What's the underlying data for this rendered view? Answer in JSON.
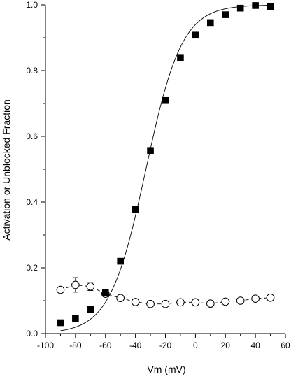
{
  "chart_data": {
    "type": "scatter",
    "title": "",
    "xlabel": "Vm (mV)",
    "ylabel": "Activation or Unblocked Fraction",
    "xlim": [
      -100,
      60
    ],
    "ylim": [
      0.0,
      1.0
    ],
    "xticks": [
      -100,
      -80,
      -60,
      -40,
      -20,
      0,
      20,
      40,
      60
    ],
    "yticks": [
      0.0,
      0.2,
      0.4,
      0.6,
      0.8,
      1.0
    ],
    "xtick_labels": [
      "-100",
      "-80",
      "-60",
      "-40",
      "-20",
      "0",
      "20",
      "40",
      "60"
    ],
    "ytick_labels": [
      "0.0",
      "0.2",
      "0.4",
      "0.6",
      "0.8",
      "1.0"
    ],
    "grid": false,
    "legend": "none",
    "series": [
      {
        "marker": "filled-square",
        "line": "solid-fit-curve",
        "x": [
          -90,
          -80,
          -70,
          -60,
          -50,
          -40,
          -30,
          -20,
          -10,
          0,
          10,
          20,
          30,
          40,
          50
        ],
        "y": [
          0.033,
          0.046,
          0.074,
          0.125,
          0.22,
          0.377,
          0.557,
          0.709,
          0.84,
          0.908,
          0.946,
          0.97,
          0.99,
          0.998,
          0.995
        ],
        "fit": {
          "model": "boltzmann",
          "v_half": -33,
          "slope": 12
        }
      },
      {
        "marker": "open-circle",
        "line": "dashed",
        "x": [
          -90,
          -80,
          -70,
          -60,
          -50,
          -40,
          -30,
          -20,
          -10,
          0,
          10,
          20,
          30,
          40,
          50
        ],
        "y": [
          0.133,
          0.148,
          0.143,
          0.121,
          0.108,
          0.096,
          0.09,
          0.09,
          0.095,
          0.095,
          0.091,
          0.097,
          0.1,
          0.106,
          0.109
        ],
        "yerr": [
          0.0,
          0.022,
          0.012,
          0.0,
          0.0,
          0.0,
          0.0,
          0.0,
          0.0,
          0.0,
          0.0,
          0.0,
          0.0,
          0.0,
          0.0
        ]
      }
    ]
  }
}
